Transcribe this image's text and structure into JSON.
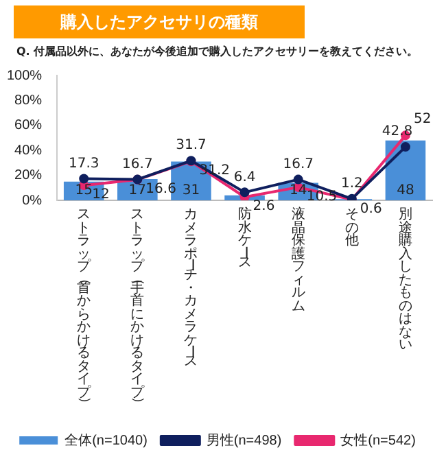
{
  "chart_data": {
    "type": "bar",
    "title": "購入したアクセサリの種類",
    "subtitle": "Q. 付属品以外に、あなたが今後追加で購入したアクセサリーを教えてください。",
    "categories": [
      "ストラップ（首からかけるタイプ）",
      "ストラップ（手首にかけるタイプ）",
      "カメラポーチ・カメラケース",
      "防水ケース",
      "液晶保護フィルム",
      "その他",
      "別途購入したものはない"
    ],
    "series": [
      {
        "name": "全体(n=1040)",
        "color": "#4a8fd8",
        "values": [
          15,
          17,
          31,
          4,
          14,
          1,
          48
        ],
        "value_labels": [
          "15",
          "17",
          "31",
          null,
          "14",
          null,
          "48"
        ]
      },
      {
        "name": "男性(n=498)",
        "type": "line",
        "color": "#0f1f5e",
        "values": [
          17.3,
          16.7,
          31.7,
          6.4,
          16.7,
          1.2,
          42.8
        ],
        "value_labels": [
          "17.3",
          "16.7",
          "31.7",
          "6.4",
          "16.7",
          "1.2",
          "42.8"
        ]
      },
      {
        "name": "女性(n=542)",
        "type": "line",
        "color": "#e8286f",
        "values": [
          12,
          16.6,
          31.2,
          2.6,
          10.5,
          0.6,
          52
        ],
        "value_labels": [
          "12",
          "16.6",
          "31.2",
          "2.6",
          "10.5",
          "0.6",
          "52"
        ]
      }
    ],
    "ylim": [
      0,
      100
    ],
    "yticks": [
      {
        "value": 0,
        "label": "0%"
      },
      {
        "value": 20,
        "label": "20%"
      },
      {
        "value": 40,
        "label": "40%"
      },
      {
        "value": 60,
        "label": "60%"
      },
      {
        "value": 80,
        "label": "80%"
      },
      {
        "value": 100,
        "label": "100%"
      }
    ],
    "grid": false,
    "legend": "bottom",
    "marker": "circle"
  }
}
